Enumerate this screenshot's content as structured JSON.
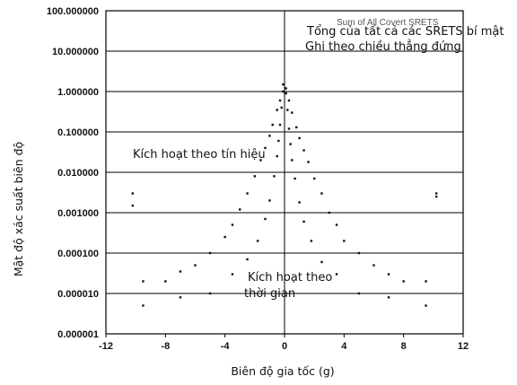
{
  "chart_data": {
    "type": "scatter",
    "title": "",
    "xlabel": "Biên độ gia tốc (g)",
    "ylabel": "Mật độ xác suất biên độ",
    "xlim": [
      -12,
      12
    ],
    "ylim_log10": [
      -6,
      2
    ],
    "y_scale": "log",
    "grid": "horizontal",
    "x_ticks": [
      "-12",
      "-8",
      "-4",
      "0",
      "4",
      "8",
      "12"
    ],
    "y_ticks": [
      "100.000000",
      "10.000000",
      "1.000000",
      "0.100000",
      "0.010000",
      "0.001000",
      "0.000100",
      "0.000010",
      "0.000001"
    ],
    "annotations": {
      "faded_legend": "Sum of All Covert SRETS",
      "legend_line1": "Tổng của tất cả các SRETS bí mật",
      "legend_line2": "Ghi theo chiều thẳng đứng",
      "signal_trigger": "Kích hoạt theo tín hiệu",
      "time_trigger_line1": "Kích hoạt theo",
      "time_trigger_line2": "thời gian"
    },
    "series": [
      {
        "name": "Kích hoạt theo tín hiệu",
        "points": [
          [
            -10.2,
            0.003
          ],
          [
            -10.2,
            0.0015
          ],
          [
            10.2,
            0.0025
          ],
          [
            10.2,
            0.003
          ],
          [
            -0.1,
            1.5
          ],
          [
            0.1,
            1.2
          ],
          [
            -0.3,
            0.6
          ],
          [
            0.3,
            0.6
          ],
          [
            -0.5,
            0.35
          ],
          [
            0.5,
            0.3
          ],
          [
            -0.8,
            0.15
          ],
          [
            0.8,
            0.13
          ],
          [
            -1.0,
            0.08
          ],
          [
            1.0,
            0.07
          ],
          [
            -1.3,
            0.04
          ],
          [
            1.3,
            0.035
          ],
          [
            -1.6,
            0.02
          ],
          [
            1.6,
            0.018
          ],
          [
            -2.0,
            0.008
          ],
          [
            2.0,
            0.007
          ],
          [
            -2.5,
            0.003
          ],
          [
            2.5,
            0.003
          ],
          [
            -3.0,
            0.0012
          ],
          [
            3.0,
            0.001
          ],
          [
            -3.5,
            0.0005
          ],
          [
            3.5,
            0.0005
          ],
          [
            -4.0,
            0.00025
          ],
          [
            4.0,
            0.0002
          ],
          [
            -5.0,
            0.0001
          ],
          [
            5.0,
            0.0001
          ],
          [
            -6.0,
            5e-05
          ],
          [
            6.0,
            5e-05
          ],
          [
            -7.0,
            3.5e-05
          ],
          [
            7.0,
            3e-05
          ],
          [
            -8.0,
            2e-05
          ],
          [
            8.0,
            2e-05
          ],
          [
            -9.5,
            2e-05
          ],
          [
            9.5,
            2e-05
          ]
        ]
      },
      {
        "name": "Kích hoạt theo thời gian",
        "points": [
          [
            -0.1,
            1.0
          ],
          [
            0.1,
            0.9
          ],
          [
            -0.2,
            0.4
          ],
          [
            0.2,
            0.35
          ],
          [
            -0.3,
            0.15
          ],
          [
            0.3,
            0.12
          ],
          [
            -0.4,
            0.06
          ],
          [
            0.4,
            0.05
          ],
          [
            -0.5,
            0.025
          ],
          [
            0.5,
            0.02
          ],
          [
            -0.7,
            0.008
          ],
          [
            0.7,
            0.007
          ],
          [
            -1.0,
            0.002
          ],
          [
            1.0,
            0.0018
          ],
          [
            -1.3,
            0.0007
          ],
          [
            1.3,
            0.0006
          ],
          [
            -1.8,
            0.0002
          ],
          [
            1.8,
            0.0002
          ],
          [
            -2.5,
            7e-05
          ],
          [
            2.5,
            6e-05
          ],
          [
            -3.5,
            3e-05
          ],
          [
            3.5,
            3e-05
          ],
          [
            -5.0,
            1e-05
          ],
          [
            5.0,
            1e-05
          ],
          [
            -7.0,
            8e-06
          ],
          [
            7.0,
            8e-06
          ],
          [
            -9.5,
            5e-06
          ],
          [
            9.5,
            5e-06
          ]
        ]
      }
    ]
  }
}
